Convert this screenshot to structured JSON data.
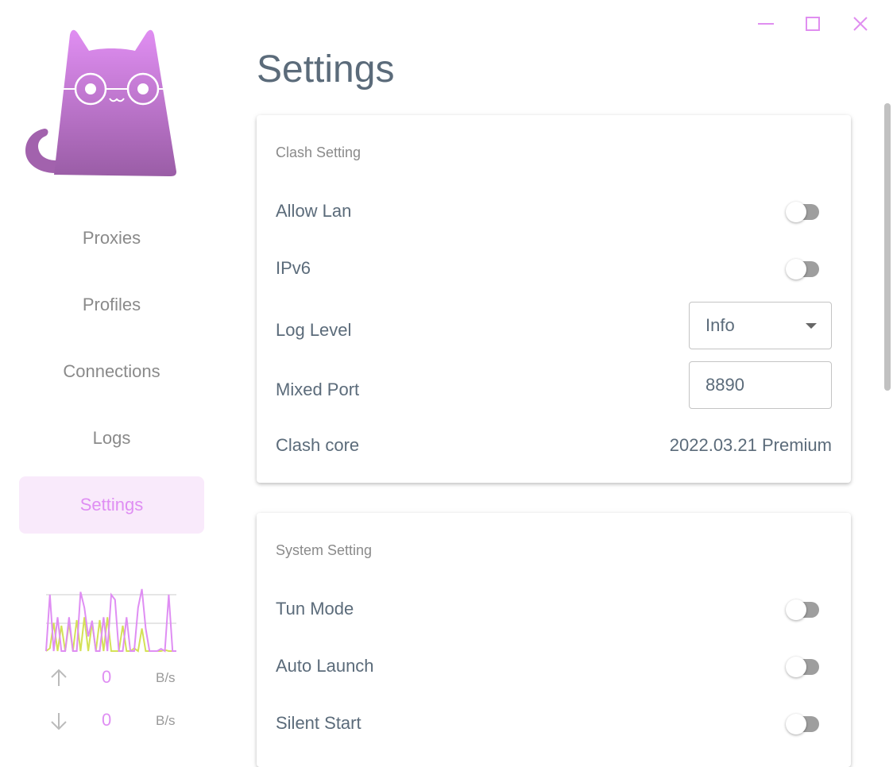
{
  "window_controls": {
    "minimize": "minimize-icon",
    "maximize": "maximize-icon",
    "close": "close-icon"
  },
  "sidebar": {
    "items": [
      {
        "label": "Proxies"
      },
      {
        "label": "Profiles"
      },
      {
        "label": "Connections"
      },
      {
        "label": "Logs"
      },
      {
        "label": "Settings",
        "active": true
      }
    ],
    "traffic": {
      "upload_value": "0",
      "upload_unit": "B/s",
      "download_value": "0",
      "download_unit": "B/s",
      "graph": {
        "series": [
          {
            "color": "#df8ef3",
            "values": [
              0,
              100,
              0,
              60,
              0,
              0,
              60,
              0,
              0,
              105,
              77,
              26,
              54,
              0,
              0,
              60,
              0,
              100,
              91,
              0,
              0,
              60,
              0,
              0,
              77,
              110,
              40,
              0,
              0,
              0,
              4,
              0,
              100,
              0,
              0
            ]
          },
          {
            "color": "#d4e157",
            "values": [
              0,
              5,
              50,
              0,
              45,
              0,
              50,
              0,
              55,
              0,
              60,
              0,
              50,
              0,
              55,
              0,
              60,
              0,
              0,
              0,
              45,
              0,
              0,
              5,
              0,
              40,
              0,
              0,
              0,
              0,
              0,
              2,
              0,
              0,
              0
            ]
          }
        ]
      }
    }
  },
  "page_title": "Settings",
  "clash_setting": {
    "title": "Clash Setting",
    "allow_lan": {
      "label": "Allow Lan",
      "on": false
    },
    "ipv6": {
      "label": "IPv6",
      "on": false
    },
    "log_level": {
      "label": "Log Level",
      "value": "Info"
    },
    "mixed_port": {
      "label": "Mixed Port",
      "value": "8890"
    },
    "clash_core": {
      "label": "Clash core",
      "value": "2022.03.21 Premium"
    }
  },
  "system_setting": {
    "title": "System Setting",
    "tun_mode": {
      "label": "Tun Mode",
      "on": false
    },
    "auto_launch": {
      "label": "Auto Launch",
      "on": false
    },
    "silent_start": {
      "label": "Silent Start",
      "on": false
    }
  }
}
